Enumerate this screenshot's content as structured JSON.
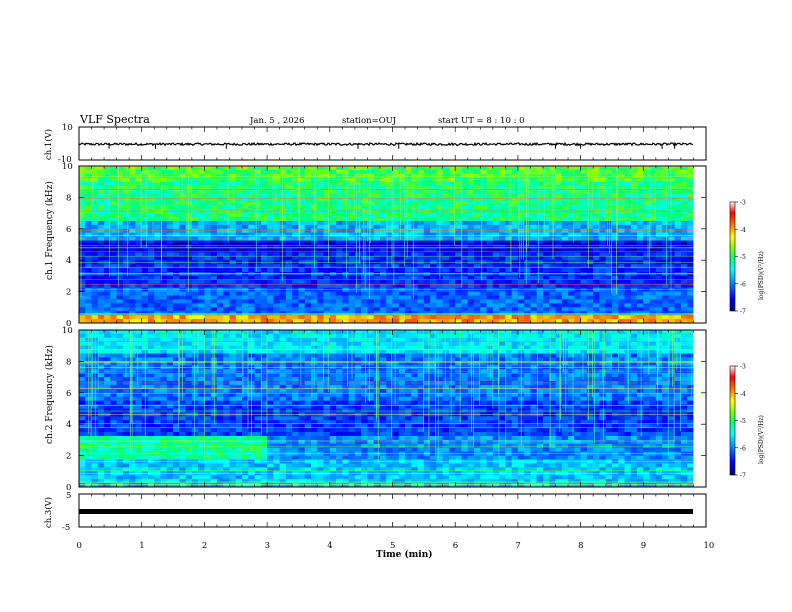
{
  "header": {
    "title": "VLF Spectra",
    "date": "Jan. 5 , 2026",
    "station": "station=OUJ",
    "start": "start UT =  8 : 10 : 0"
  },
  "chart_data": [
    {
      "type": "line",
      "panel": "ch1-waveform",
      "ylabel": "ch.1(V)",
      "ylim": [
        -10,
        10
      ],
      "yticks": [
        10,
        -10
      ],
      "xlim": [
        0,
        10
      ],
      "series": [
        {
          "values_summary": "band of values near 0 V with spikes to about -3 V"
        }
      ]
    },
    {
      "type": "heatmap",
      "panel": "ch1-spectrogram",
      "ylabel": "ch.1 Frequency (kHz)",
      "yticks": [
        0,
        2,
        4,
        6,
        8,
        10
      ],
      "ylim": [
        0,
        10
      ],
      "xlim": [
        0,
        9.8
      ],
      "colorbar": {
        "label": "log(PSD)(V²/Hz)",
        "ticks": [
          -3,
          -4,
          -5,
          -6,
          -7
        ],
        "range": [
          -7,
          -3
        ],
        "colors": [
          "#00007f",
          "#0000ff",
          "#00a0ff",
          "#00ffff",
          "#00ff80",
          "#80ff00",
          "#ffff00",
          "#ff8000",
          "#ff0000",
          "#ffffff"
        ]
      }
    },
    {
      "type": "heatmap",
      "panel": "ch2-spectrogram",
      "ylabel": "ch.2 Frequency (kHz)",
      "yticks": [
        0,
        2,
        4,
        6,
        8,
        10
      ],
      "ylim": [
        0,
        10
      ],
      "xlim": [
        0,
        9.8
      ],
      "colorbar": {
        "label": "log(PSD)(V²/Hz)",
        "ticks": [
          -3,
          -4,
          -5,
          -6,
          -7
        ],
        "range": [
          -7,
          -3
        ],
        "colors": [
          "#00007f",
          "#0000ff",
          "#00a0ff",
          "#00ffff",
          "#00ff80",
          "#80ff00",
          "#ffff00",
          "#ff8000",
          "#ff0000",
          "#ffffff"
        ]
      }
    },
    {
      "type": "line",
      "panel": "ch3-waveform",
      "ylabel": "ch.3(V)",
      "ylim": [
        -5,
        5
      ],
      "yticks": [
        5,
        -5
      ],
      "xlim": [
        0,
        10
      ],
      "series": [
        {
          "values_summary": "constant at about -1.5 V"
        }
      ]
    }
  ],
  "xaxis": {
    "label": "Time (min)",
    "ticks": [
      "0",
      "1",
      "2",
      "3",
      "4",
      "5",
      "6",
      "7",
      "8",
      "9",
      "10"
    ]
  },
  "colors": {
    "trace": "#000000",
    "background": "#ffffff"
  }
}
